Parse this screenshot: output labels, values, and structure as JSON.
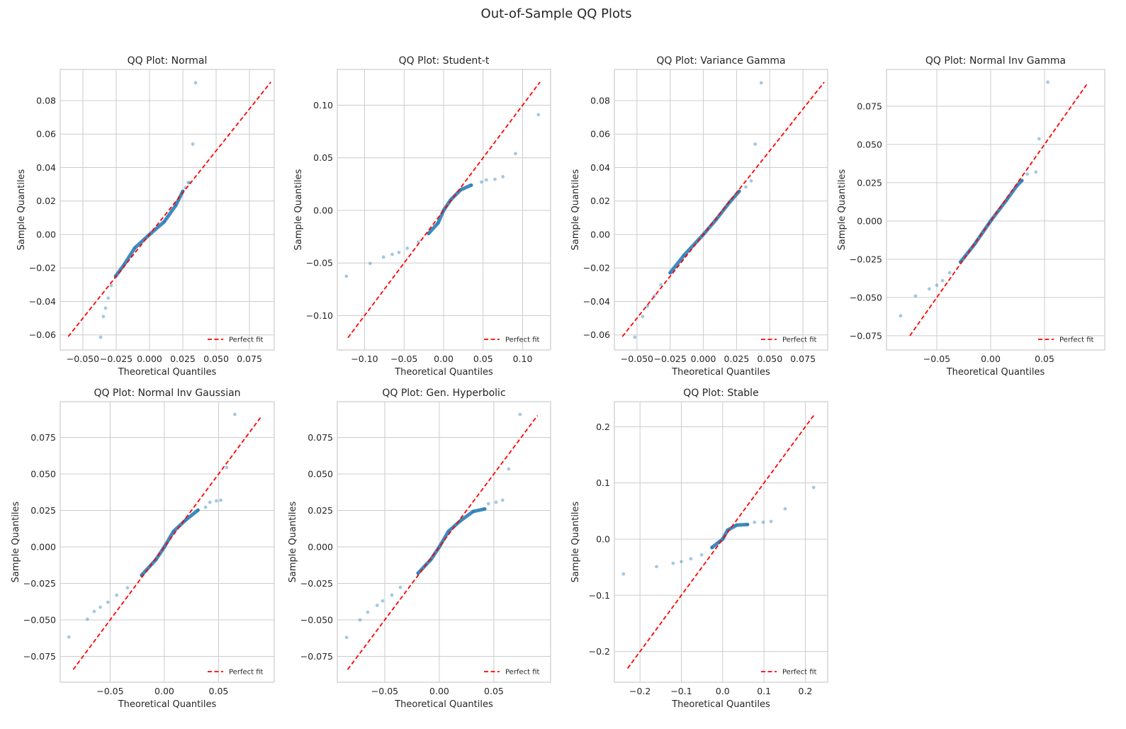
{
  "suptitle": "Out-of-Sample QQ Plots",
  "colors": {
    "points": "#1f77b4",
    "line": "#ff0000",
    "grid": "#cccccc",
    "spine": "#cccccc"
  },
  "chart_data": [
    {
      "type": "scatter",
      "title": "QQ Plot: Normal",
      "xlabel": "Theoretical Quantiles",
      "ylabel": "Sample Quantiles",
      "legend": "Perfect fit",
      "legend_loc": "lower-right",
      "grid": true,
      "xlim": [
        -0.067,
        0.0936
      ],
      "ylim": [
        -0.069,
        0.0986
      ],
      "xticks": [
        "-0.050",
        "-0.025",
        "0.000",
        "0.025",
        "0.050",
        "0.075"
      ],
      "yticks": [
        "-0.06",
        "-0.04",
        "-0.02",
        "0.00",
        "0.02",
        "0.04",
        "0.06",
        "0.08"
      ],
      "line": [
        -0.061,
        0.091
      ],
      "points": [
        [
          -0.0367,
          -0.0614
        ],
        [
          -0.0346,
          -0.049
        ],
        [
          -0.033,
          -0.044
        ],
        [
          -0.031,
          -0.038
        ],
        [
          -0.0287,
          -0.0305
        ],
        [
          -0.0255,
          -0.025
        ],
        [
          -0.019,
          -0.018
        ],
        [
          -0.011,
          -0.008
        ],
        [
          0,
          0
        ],
        [
          0.011,
          0.0076
        ],
        [
          0.0197,
          0.0174
        ],
        [
          0.025,
          0.0258
        ],
        [
          0.027,
          0.028
        ],
        [
          0.029,
          0.031
        ],
        [
          0.03,
          0.031
        ],
        [
          0.0325,
          0.054
        ],
        [
          0.0346,
          0.0906
        ]
      ]
    },
    {
      "type": "scatter",
      "title": "QQ Plot: Student-t",
      "xlabel": "Theoretical Quantiles",
      "ylabel": "Sample Quantiles",
      "legend": "Perfect fit",
      "legend_loc": "lower-right",
      "grid": true,
      "xlim": [
        -0.1345,
        0.1354
      ],
      "ylim": [
        -0.1327,
        0.134
      ],
      "xticks": [
        "-0.10",
        "-0.05",
        "0.00",
        "0.05",
        "0.10"
      ],
      "yticks": [
        "-0.10",
        "-0.05",
        "0.00",
        "0.05",
        "0.10"
      ],
      "line": [
        -0.121,
        0.122
      ],
      "points": [
        [
          -0.123,
          -0.0626
        ],
        [
          -0.093,
          -0.0505
        ],
        [
          -0.076,
          -0.0444
        ],
        [
          -0.065,
          -0.0418
        ],
        [
          -0.0565,
          -0.04
        ],
        [
          -0.046,
          -0.036
        ],
        [
          -0.032,
          -0.03
        ],
        [
          -0.019,
          -0.022
        ],
        [
          -0.007,
          -0.012
        ],
        [
          0,
          0
        ],
        [
          0.009,
          0.01
        ],
        [
          0.0215,
          0.0195
        ],
        [
          0.035,
          0.024
        ],
        [
          0.048,
          0.027
        ],
        [
          0.054,
          0.029
        ],
        [
          0.065,
          0.0296
        ],
        [
          0.075,
          0.032
        ],
        [
          0.091,
          0.054
        ],
        [
          0.12,
          0.091
        ]
      ]
    },
    {
      "type": "scatter",
      "title": "QQ Plot: Variance Gamma",
      "xlabel": "Theoretical Quantiles",
      "ylabel": "Sample Quantiles",
      "legend": "Perfect fit",
      "legend_loc": "lower-right",
      "grid": true,
      "xlim": [
        -0.067,
        0.0936
      ],
      "ylim": [
        -0.069,
        0.0986
      ],
      "xticks": [
        "-0.050",
        "-0.025",
        "0.000",
        "0.025",
        "0.050",
        "0.075"
      ],
      "yticks": [
        "-0.06",
        "-0.04",
        "-0.02",
        "0.00",
        "0.02",
        "0.04",
        "0.06",
        "0.08"
      ],
      "line": [
        -0.061,
        0.091
      ],
      "points": [
        [
          -0.0516,
          -0.0614
        ],
        [
          -0.0457,
          -0.049
        ],
        [
          -0.042,
          -0.0428
        ],
        [
          -0.037,
          -0.0368
        ],
        [
          -0.032,
          -0.03
        ],
        [
          -0.025,
          -0.0229
        ],
        [
          -0.0144,
          -0.0123
        ],
        [
          0,
          0
        ],
        [
          0.0096,
          0.0089
        ],
        [
          0.02,
          0.0195
        ],
        [
          0.027,
          0.0258
        ],
        [
          0.032,
          0.0284
        ],
        [
          0.036,
          0.032
        ],
        [
          0.039,
          0.054
        ],
        [
          0.0436,
          0.0906
        ]
      ]
    },
    {
      "type": "scatter",
      "title": "QQ Plot: Normal Inv Gamma",
      "xlabel": "Theoretical Quantiles",
      "ylabel": "Sample Quantiles",
      "legend": "Perfect fit",
      "legend_loc": "lower-right",
      "grid": true,
      "xlim": [
        -0.0967,
        0.1059
      ],
      "ylim": [
        -0.0843,
        0.099
      ],
      "xticks": [
        "-0.05",
        "0.00",
        "0.05"
      ],
      "yticks": [
        "-0.075",
        "-0.050",
        "-0.025",
        "0.000",
        "0.025",
        "0.050",
        "0.075"
      ],
      "line": [
        -0.075,
        0.09
      ],
      "points": [
        [
          -0.0836,
          -0.062
        ],
        [
          -0.0697,
          -0.049
        ],
        [
          -0.057,
          -0.0444
        ],
        [
          -0.05,
          -0.042
        ],
        [
          -0.0447,
          -0.039
        ],
        [
          -0.038,
          -0.0338
        ],
        [
          -0.028,
          -0.0268
        ],
        [
          -0.015,
          -0.0153
        ],
        [
          0,
          0
        ],
        [
          0.0145,
          0.0134
        ],
        [
          0.0243,
          0.023
        ],
        [
          0.029,
          0.0264
        ],
        [
          0.034,
          0.0306
        ],
        [
          0.042,
          0.032
        ],
        [
          0.045,
          0.0537
        ],
        [
          0.053,
          0.0907
        ]
      ]
    },
    {
      "type": "scatter",
      "title": "QQ Plot: Normal Inv Gaussian",
      "xlabel": "Theoretical Quantiles",
      "ylabel": "Sample Quantiles",
      "legend": "Perfect fit",
      "legend_loc": "lower-right",
      "grid": true,
      "xlim": [
        -0.096,
        0.1013
      ],
      "ylim": [
        -0.0927,
        0.0995
      ],
      "xticks": [
        "-0.05",
        "0.00",
        "0.05"
      ],
      "yticks": [
        "-0.075",
        "-0.050",
        "-0.025",
        "0.000",
        "0.025",
        "0.050",
        "0.075"
      ],
      "line": [
        -0.084,
        0.09
      ],
      "points": [
        [
          -0.088,
          -0.0617
        ],
        [
          -0.071,
          -0.0495
        ],
        [
          -0.0647,
          -0.0442
        ],
        [
          -0.059,
          -0.0413
        ],
        [
          -0.052,
          -0.0379
        ],
        [
          -0.044,
          -0.033
        ],
        [
          -0.034,
          -0.028
        ],
        [
          -0.021,
          -0.0194
        ],
        [
          -0.0078,
          -0.0087
        ],
        [
          0,
          0
        ],
        [
          0.0085,
          0.0107
        ],
        [
          0.0196,
          0.0184
        ],
        [
          0.031,
          0.0252
        ],
        [
          0.038,
          0.0272
        ],
        [
          0.042,
          0.0306
        ],
        [
          0.048,
          0.0316
        ],
        [
          0.052,
          0.032
        ],
        [
          0.0575,
          0.0544
        ],
        [
          0.065,
          0.0908
        ]
      ]
    },
    {
      "type": "scatter",
      "title": "QQ Plot: Gen. Hyperbolic",
      "xlabel": "Theoretical Quantiles",
      "ylabel": "Sample Quantiles",
      "legend": "Perfect fit",
      "legend_loc": "lower-right",
      "grid": true,
      "xlim": [
        -0.0935,
        0.102
      ],
      "ylim": [
        -0.0927,
        0.0995
      ],
      "xticks": [
        "-0.05",
        "0.00",
        "0.05"
      ],
      "yticks": [
        "-0.075",
        "-0.050",
        "-0.025",
        "0.000",
        "0.025",
        "0.050",
        "0.075"
      ],
      "line": [
        -0.084,
        0.09
      ],
      "points": [
        [
          -0.085,
          -0.062
        ],
        [
          -0.0727,
          -0.05
        ],
        [
          -0.0656,
          -0.0447
        ],
        [
          -0.057,
          -0.04
        ],
        [
          -0.052,
          -0.037
        ],
        [
          -0.0435,
          -0.033
        ],
        [
          -0.0357,
          -0.0277
        ],
        [
          -0.0195,
          -0.018
        ],
        [
          -0.0078,
          -0.0087
        ],
        [
          0,
          0
        ],
        [
          0.0084,
          0.0107
        ],
        [
          0.0195,
          0.018
        ],
        [
          0.031,
          0.0243
        ],
        [
          0.0416,
          0.026
        ],
        [
          0.045,
          0.0296
        ],
        [
          0.052,
          0.0306
        ],
        [
          0.058,
          0.032
        ],
        [
          0.0636,
          0.0534
        ],
        [
          0.074,
          0.0908
        ]
      ]
    },
    {
      "type": "scatter",
      "title": "QQ Plot: Stable",
      "xlabel": "Theoretical Quantiles",
      "ylabel": "Sample Quantiles",
      "legend": "Perfect fit",
      "legend_loc": "lower-right",
      "grid": true,
      "xlim": [
        -0.262,
        0.254
      ],
      "ylim": [
        -0.2547,
        0.2446
      ],
      "xticks": [
        "-0.2",
        "-0.1",
        "0.0",
        "0.1",
        "0.2"
      ],
      "yticks": [
        "-0.2",
        "-0.1",
        "0.0",
        "0.1",
        "0.2"
      ],
      "line": [
        -0.23,
        0.222
      ],
      "points": [
        [
          -0.24,
          -0.062
        ],
        [
          -0.16,
          -0.049
        ],
        [
          -0.12,
          -0.043
        ],
        [
          -0.1,
          -0.04
        ],
        [
          -0.077,
          -0.035
        ],
        [
          -0.051,
          -0.028
        ],
        [
          -0.026,
          -0.015
        ],
        [
          -0.0086,
          -0.005
        ],
        [
          0,
          0
        ],
        [
          0.012,
          0.016
        ],
        [
          0.034,
          0.025
        ],
        [
          0.06,
          0.026
        ],
        [
          0.077,
          0.03
        ],
        [
          0.098,
          0.03
        ],
        [
          0.117,
          0.0315
        ],
        [
          0.151,
          0.054
        ],
        [
          0.22,
          0.092
        ]
      ]
    }
  ]
}
